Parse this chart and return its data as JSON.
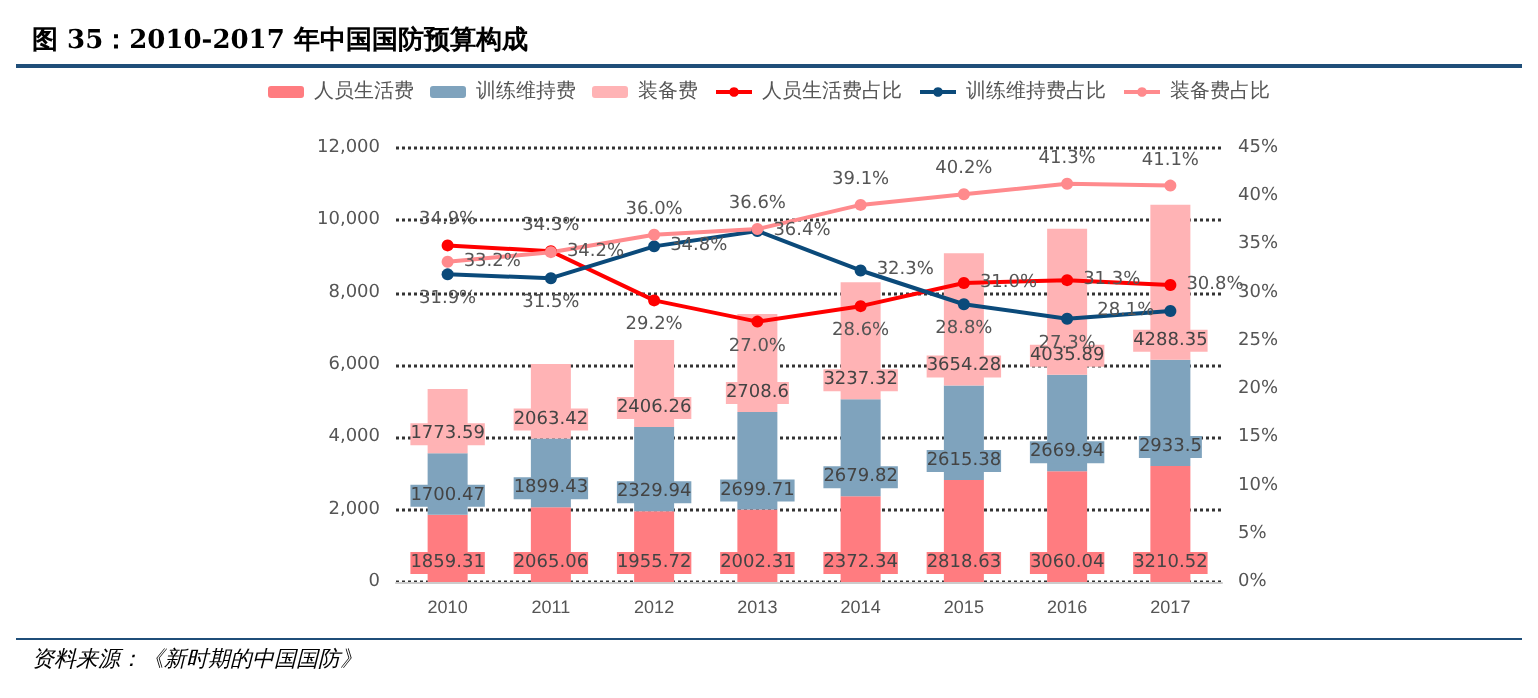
{
  "chart_data": {
    "type": "bar",
    "stacked": true,
    "title": "图 35：2010-2017 年中国国防预算构成",
    "annotations": [
      "资料来源：《新时期的中国国防》"
    ],
    "categories": [
      "2010",
      "2011",
      "2012",
      "2013",
      "2014",
      "2015",
      "2016",
      "2017"
    ],
    "series": [
      {
        "name": "人员生活费",
        "color": "#ff7c80",
        "values": [
          1859.31,
          2065.06,
          1955.72,
          2002.31,
          2372.34,
          2818.63,
          3060.04,
          3210.52
        ]
      },
      {
        "name": "训练维持费",
        "color": "#7fa3bd",
        "values": [
          1700.47,
          1899.43,
          2329.94,
          2699.71,
          2679.82,
          2615.38,
          2669.94,
          2933.5
        ]
      },
      {
        "name": "装备费",
        "color": "#ffb3b5",
        "values": [
          1773.59,
          2063.42,
          2406.26,
          2708.6,
          3237.32,
          3654.28,
          4035.89,
          4288.35
        ]
      },
      {
        "name": "人员生活费占比",
        "type": "line",
        "axis": "y2",
        "color": "#ff0000",
        "values": [
          34.9,
          34.3,
          29.2,
          27.0,
          28.6,
          31.0,
          31.3,
          30.8
        ],
        "value_labels": [
          "34.9%",
          "34.3%",
          "29.2%",
          "27.0%",
          "28.6%",
          "31.0%",
          "31.3%",
          "30.8%"
        ]
      },
      {
        "name": "训练维持费占比",
        "type": "line",
        "axis": "y2",
        "color": "#0b4a7a",
        "values": [
          31.9,
          31.5,
          34.8,
          36.4,
          32.3,
          28.8,
          27.3,
          28.1
        ],
        "value_labels": [
          "31.9%",
          "31.5%",
          "34.8%",
          "36.4%",
          "32.3%",
          "28.8%",
          "27.3%",
          "28.1%"
        ]
      },
      {
        "name": "装备费占比",
        "type": "line",
        "axis": "y2",
        "color": "#ff8a8d",
        "values": [
          33.2,
          34.2,
          36.0,
          36.6,
          39.1,
          40.2,
          41.3,
          41.1
        ],
        "value_labels": [
          "33.2%",
          "34.2%",
          "36.0%",
          "36.6%",
          "39.1%",
          "40.2%",
          "41.3%",
          "41.1%"
        ]
      }
    ],
    "data_labels": true,
    "marker": "circle",
    "line_style": "solid",
    "grid": "y",
    "legend": "top",
    "ylim": [
      0,
      12000
    ],
    "yticks": [
      {
        "value": 0,
        "label": "0"
      },
      {
        "value": 2000,
        "label": "2,000"
      },
      {
        "value": 4000,
        "label": "4,000"
      },
      {
        "value": 6000,
        "label": "6,000"
      },
      {
        "value": 8000,
        "label": "8,000"
      },
      {
        "value": 10000,
        "label": "10,000"
      },
      {
        "value": 12000,
        "label": "12,000"
      }
    ],
    "y2lim": [
      0,
      45
    ],
    "y2ticks": [
      {
        "value": 0,
        "label": "0%"
      },
      {
        "value": 5,
        "label": "5%"
      },
      {
        "value": 10,
        "label": "10%"
      },
      {
        "value": 15,
        "label": "15%"
      },
      {
        "value": 20,
        "label": "20%"
      },
      {
        "value": 25,
        "label": "25%"
      },
      {
        "value": 30,
        "label": "30%"
      },
      {
        "value": 35,
        "label": "35%"
      },
      {
        "value": 40,
        "label": "40%"
      },
      {
        "value": 45,
        "label": "45%"
      }
    ]
  }
}
